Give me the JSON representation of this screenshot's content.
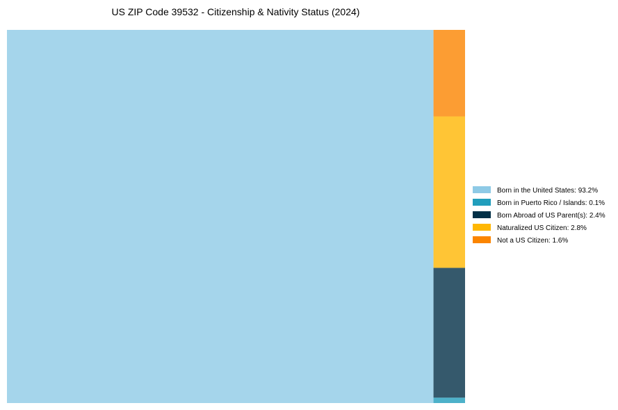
{
  "chart_data": {
    "type": "treemap",
    "title": "US ZIP Code 39532 - Citizenship & Nativity Status (2024)",
    "legend_position": "right",
    "items": [
      {
        "label": "Born in the United States",
        "value": 93.2,
        "color": "#8ecae6",
        "legend": "Born in the United States: 93.2%"
      },
      {
        "label": "Born in Puerto Rico / Islands",
        "value": 0.1,
        "color": "#219ebc",
        "legend": "Born in Puerto Rico / Islands: 0.1%"
      },
      {
        "label": "Born Abroad of US Parent(s)",
        "value": 2.4,
        "color": "#023047",
        "legend": "Born Abroad of US Parent(s): 2.4%"
      },
      {
        "label": "Naturalized US Citizen",
        "value": 2.8,
        "color": "#ffb703",
        "legend": "Naturalized US Citizen: 2.8%"
      },
      {
        "label": "Not a US Citizen",
        "value": 1.6,
        "color": "#fb8500",
        "legend": "Not a US Citizen: 1.6%"
      }
    ]
  }
}
